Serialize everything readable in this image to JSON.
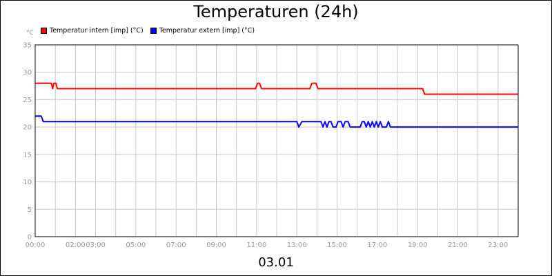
{
  "chart_data": {
    "type": "line",
    "title": "Temperaturen (24h)",
    "unit_label": "°C",
    "x_tick_labels": [
      "00:00",
      "02:00",
      "03:00",
      "05:00",
      "07:00",
      "09:00",
      "11:00",
      "13:00",
      "15:00",
      "17:00",
      "19:00",
      "21:00",
      "23:00"
    ],
    "x_tick_hours": [
      0,
      2,
      3,
      5,
      7,
      9,
      11,
      13,
      15,
      17,
      19,
      21,
      23
    ],
    "y_ticks": [
      0,
      5,
      10,
      15,
      20,
      25,
      30,
      35
    ],
    "xlim": [
      0,
      24
    ],
    "ylim": [
      0,
      35
    ],
    "grid": true,
    "legend_position": "top-left",
    "date_label": "03.01",
    "series": [
      {
        "name": "Temperatur intern [imp] (°C)",
        "color": "#ff0000",
        "points": [
          [
            0,
            28
          ],
          [
            0.8,
            28
          ],
          [
            0.87,
            27
          ],
          [
            0.93,
            28
          ],
          [
            1.03,
            28
          ],
          [
            1.1,
            27
          ],
          [
            10.95,
            27
          ],
          [
            11.05,
            28
          ],
          [
            11.15,
            28
          ],
          [
            11.25,
            27
          ],
          [
            13.65,
            27
          ],
          [
            13.75,
            28
          ],
          [
            13.95,
            28
          ],
          [
            14.05,
            27
          ],
          [
            19.25,
            27
          ],
          [
            19.35,
            26
          ],
          [
            24,
            26
          ]
        ]
      },
      {
        "name": "Temperatur extern [imp] (°C)",
        "color": "#0000ff",
        "points": [
          [
            0,
            22
          ],
          [
            0.3,
            22
          ],
          [
            0.4,
            21
          ],
          [
            13.0,
            21
          ],
          [
            13.1,
            20
          ],
          [
            13.25,
            21
          ],
          [
            14.2,
            21
          ],
          [
            14.3,
            20
          ],
          [
            14.4,
            21
          ],
          [
            14.5,
            20
          ],
          [
            14.6,
            21
          ],
          [
            14.7,
            21
          ],
          [
            14.8,
            20
          ],
          [
            14.95,
            20
          ],
          [
            15.05,
            21
          ],
          [
            15.2,
            21
          ],
          [
            15.3,
            20
          ],
          [
            15.4,
            21
          ],
          [
            15.55,
            21
          ],
          [
            15.65,
            20
          ],
          [
            16.15,
            20
          ],
          [
            16.25,
            21
          ],
          [
            16.35,
            21
          ],
          [
            16.45,
            20
          ],
          [
            16.55,
            21
          ],
          [
            16.65,
            20
          ],
          [
            16.75,
            21
          ],
          [
            16.85,
            20
          ],
          [
            16.95,
            21
          ],
          [
            17.05,
            20
          ],
          [
            17.15,
            21
          ],
          [
            17.25,
            20
          ],
          [
            17.45,
            20
          ],
          [
            17.55,
            21
          ],
          [
            17.65,
            20
          ],
          [
            24,
            20
          ]
        ]
      }
    ]
  }
}
